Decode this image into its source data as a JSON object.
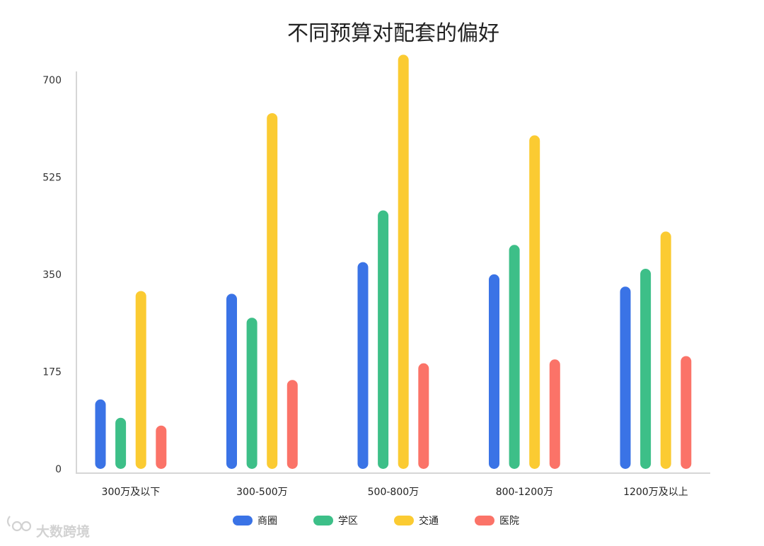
{
  "chart_data": {
    "type": "bar",
    "title": "不同预算对配套的偏好",
    "xlabel": "",
    "ylabel": "",
    "categories": [
      "300万及以下",
      "300-500万",
      "500-800万",
      "800-1200万",
      "1200万及以上"
    ],
    "series": [
      {
        "name": "商圈",
        "color": "#3a73e6",
        "values": [
          125,
          315,
          372,
          350,
          328
        ]
      },
      {
        "name": "学区",
        "color": "#3dbf88",
        "values": [
          92,
          272,
          465,
          403,
          360
        ]
      },
      {
        "name": "交通",
        "color": "#fbcb32",
        "values": [
          320,
          640,
          745,
          600,
          427
        ]
      },
      {
        "name": "医院",
        "color": "#fb7368",
        "values": [
          78,
          160,
          190,
          197,
          203
        ]
      }
    ],
    "yticks": [
      0,
      175,
      350,
      525,
      700
    ],
    "ylim": [
      0,
      745
    ],
    "legend_position": "bottom",
    "grid": false
  },
  "watermark": {
    "text": "大数跨境",
    "icon": "logo-icon"
  }
}
